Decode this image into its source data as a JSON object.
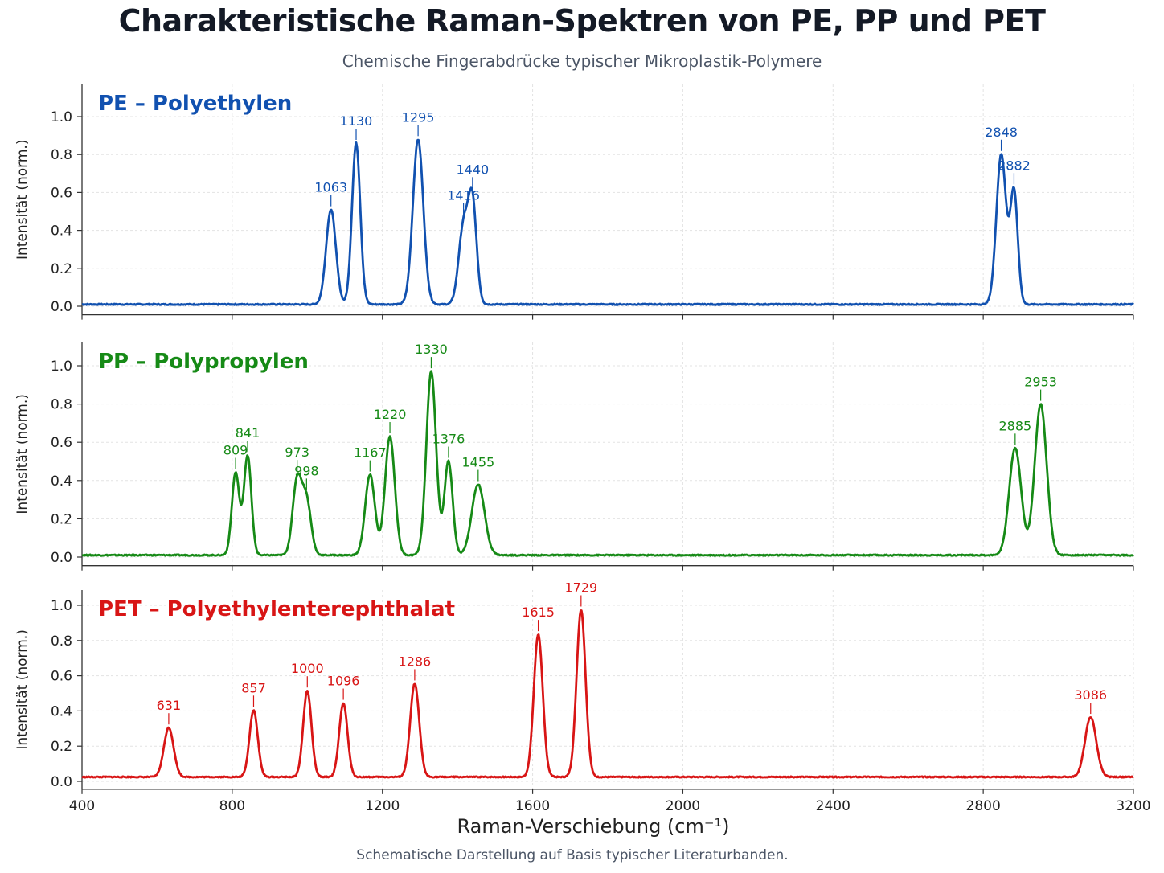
{
  "title": "Charakteristische Raman-Spektren von PE, PP und PET",
  "subtitle": "Chemische Fingerabdrücke typischer Mikroplastik-Polymere",
  "footnote": "Schematische Darstellung auf Basis typischer Literaturbanden.",
  "chart_data": {
    "type": "line",
    "xlabel": "Raman-Verschiebung (cm⁻¹)",
    "ylabel": "Intensität (norm.)",
    "xlim": [
      400,
      3200
    ],
    "ylim": [
      0,
      1.1
    ],
    "xticks": [
      400,
      800,
      1200,
      1600,
      2000,
      2400,
      2800,
      3200
    ],
    "yticks": [
      0.0,
      0.2,
      0.4,
      0.6,
      0.8,
      1.0
    ],
    "grid": true,
    "panels": [
      {
        "name": "PE – Polyethylen",
        "color": "#1151b0",
        "baseline": 0.01,
        "peaks": [
          {
            "label": "1063",
            "x": 1063,
            "y": 0.5,
            "w": 13
          },
          {
            "label": "1130",
            "x": 1130,
            "y": 0.85,
            "w": 11
          },
          {
            "label": "1295",
            "x": 1295,
            "y": 0.87,
            "w": 14
          },
          {
            "label": "1416",
            "x": 1416,
            "y": 0.41,
            "w": 13
          },
          {
            "label": "1440",
            "x": 1440,
            "y": 0.52,
            "w": 11
          },
          {
            "label": "2848",
            "x": 2848,
            "y": 0.79,
            "w": 13
          },
          {
            "label": "2882",
            "x": 2882,
            "y": 0.59,
            "w": 10
          }
        ]
      },
      {
        "name": "PP – Polypropylen",
        "color": "#168a16",
        "baseline": 0.01,
        "peaks": [
          {
            "label": "809",
            "x": 809,
            "y": 0.43,
            "w": 10
          },
          {
            "label": "841",
            "x": 841,
            "y": 0.52,
            "w": 10
          },
          {
            "label": "973",
            "x": 973,
            "y": 0.39,
            "w": 12
          },
          {
            "label": "998",
            "x": 998,
            "y": 0.28,
            "w": 12
          },
          {
            "label": "1167",
            "x": 1167,
            "y": 0.42,
            "w": 13
          },
          {
            "label": "1220",
            "x": 1220,
            "y": 0.62,
            "w": 13
          },
          {
            "label": "1330",
            "x": 1330,
            "y": 0.96,
            "w": 13
          },
          {
            "label": "1376",
            "x": 1376,
            "y": 0.49,
            "w": 11
          },
          {
            "label": "1455",
            "x": 1455,
            "y": 0.37,
            "w": 17
          },
          {
            "label": "2885",
            "x": 2885,
            "y": 0.56,
            "w": 16
          },
          {
            "label": "2953",
            "x": 2953,
            "y": 0.79,
            "w": 16
          }
        ]
      },
      {
        "name": "PET – Polyethylenterephthalat",
        "color": "#d81515",
        "baseline": 0.025,
        "peaks": [
          {
            "label": "631",
            "x": 631,
            "y": 0.28,
            "w": 13
          },
          {
            "label": "857",
            "x": 857,
            "y": 0.38,
            "w": 11
          },
          {
            "label": "1000",
            "x": 1000,
            "y": 0.49,
            "w": 11
          },
          {
            "label": "1096",
            "x": 1096,
            "y": 0.42,
            "w": 11
          },
          {
            "label": "1286",
            "x": 1286,
            "y": 0.53,
            "w": 12
          },
          {
            "label": "1615",
            "x": 1615,
            "y": 0.81,
            "w": 12
          },
          {
            "label": "1729",
            "x": 1729,
            "y": 0.95,
            "w": 12
          },
          {
            "label": "3086",
            "x": 3086,
            "y": 0.34,
            "w": 15
          }
        ]
      }
    ]
  }
}
